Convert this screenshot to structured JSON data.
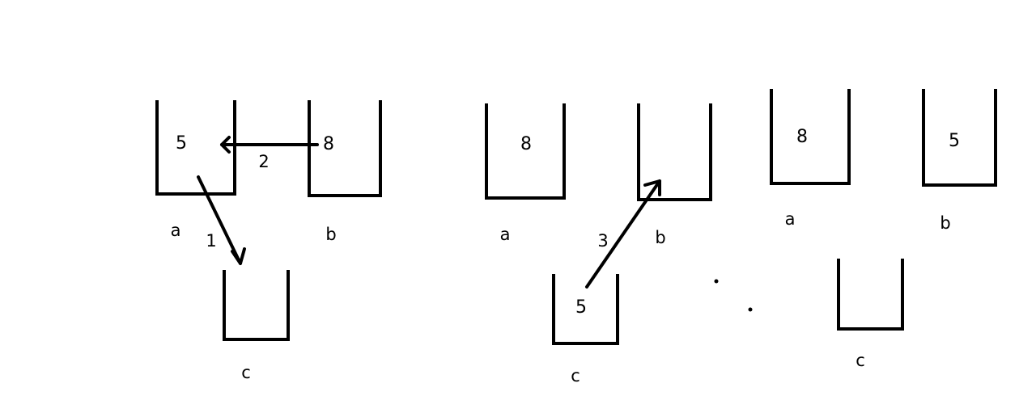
{
  "stages": [
    {
      "stacks": {
        "a": {
          "label": "a",
          "value": "5"
        },
        "b": {
          "label": "b",
          "value": "8"
        },
        "c": {
          "label": "c",
          "value": ""
        }
      },
      "moves": [
        {
          "step": "1",
          "from": "a",
          "to": "c"
        },
        {
          "step": "2",
          "from": "b",
          "to": "a"
        }
      ]
    },
    {
      "stacks": {
        "a": {
          "label": "a",
          "value": "8"
        },
        "b": {
          "label": "b",
          "value": ""
        },
        "c": {
          "label": "c",
          "value": "5"
        }
      },
      "moves": [
        {
          "step": "3",
          "from": "c",
          "to": "b"
        }
      ]
    },
    {
      "stacks": {
        "a": {
          "label": "a",
          "value": "8"
        },
        "b": {
          "label": "b",
          "value": "5"
        },
        "c": {
          "label": "c",
          "value": ""
        }
      },
      "moves": []
    }
  ],
  "colors": {
    "stroke": "#000000",
    "background": "#ffffff"
  }
}
